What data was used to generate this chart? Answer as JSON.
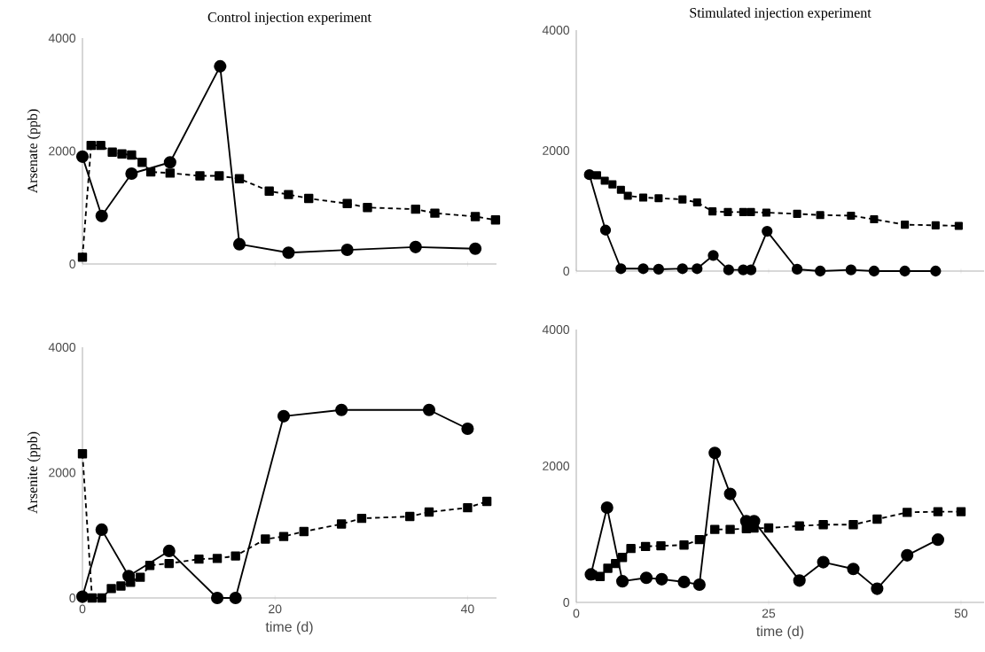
{
  "chart_data": [
    {
      "type": "line",
      "title": "Control injection experiment",
      "ylabel": "Arsenate (ppb)",
      "xlim": [
        0,
        43
      ],
      "xticks": [
        0,
        20,
        40
      ],
      "ylim": [
        0,
        4000
      ],
      "yticks": [
        0,
        2000,
        4000
      ],
      "tick_labels": "y",
      "grid": false,
      "series": [
        {
          "color": "#000000",
          "marker": "circle",
          "line_style": "solid",
          "x": [
            0,
            2,
            5.1,
            9.1,
            14.3,
            16.3,
            21.4,
            27.5,
            34.6,
            40.8
          ],
          "values": [
            1900,
            850,
            1600,
            1800,
            3500,
            350,
            200,
            250,
            300,
            270
          ]
        },
        {
          "color": "#000000",
          "marker": "square",
          "line_style": "dashed",
          "x": [
            0,
            0.9,
            1.9,
            3.1,
            4.1,
            5.1,
            6.2,
            7.1,
            9.1,
            12.2,
            14.2,
            16.3,
            19.4,
            21.4,
            23.5,
            27.5,
            29.6,
            34.6,
            36.6,
            40.8,
            42.9
          ],
          "values": [
            120,
            2100,
            2100,
            1980,
            1950,
            1930,
            1800,
            1630,
            1610,
            1560,
            1560,
            1510,
            1290,
            1230,
            1160,
            1070,
            1000,
            970,
            900,
            840,
            780
          ]
        }
      ]
    },
    {
      "type": "line",
      "title": "Stimulated injection experiment",
      "xlim": [
        0,
        53
      ],
      "xticks": [
        0,
        25,
        50
      ],
      "ylim": [
        0,
        4000
      ],
      "yticks": [
        0,
        2000,
        4000
      ],
      "tick_labels": "y",
      "grid": false,
      "series": [
        {
          "color": "#000000",
          "marker": "circle",
          "line_style": "solid",
          "x": [
            1.7,
            3.8,
            5.8,
            8.7,
            10.7,
            13.8,
            15.7,
            17.8,
            19.8,
            21.7,
            22.7,
            24.8,
            28.7,
            31.7,
            35.7,
            38.7,
            42.7,
            46.7
          ],
          "values": [
            1600,
            680,
            40,
            40,
            30,
            40,
            40,
            260,
            20,
            20,
            20,
            660,
            30,
            0,
            20,
            0,
            0,
            0
          ]
        },
        {
          "color": "#000000",
          "marker": "square",
          "line_style": "dashed",
          "x": [
            2.7,
            3.7,
            4.7,
            5.8,
            6.7,
            8.7,
            10.7,
            13.8,
            15.7,
            17.7,
            19.7,
            21.7,
            22.7,
            24.7,
            28.7,
            31.7,
            35.7,
            38.7,
            42.7,
            46.7,
            49.7
          ],
          "values": [
            1590,
            1500,
            1440,
            1350,
            1250,
            1220,
            1210,
            1190,
            1140,
            990,
            980,
            980,
            980,
            970,
            950,
            930,
            920,
            860,
            770,
            760,
            750
          ]
        }
      ]
    },
    {
      "type": "line",
      "ylabel": "Arsenite (ppb)",
      "xlabel": "time (d)",
      "xlim": [
        0,
        43
      ],
      "xticks": [
        0,
        20,
        40
      ],
      "ylim": [
        0,
        4000
      ],
      "yticks": [
        0,
        2000,
        4000
      ],
      "grid": false,
      "series": [
        {
          "color": "#000000",
          "marker": "circle",
          "line_style": "solid",
          "x": [
            0,
            2,
            4.8,
            9,
            14,
            15.9,
            20.9,
            26.9,
            36,
            40
          ],
          "values": [
            20,
            1090,
            350,
            750,
            0,
            0,
            2900,
            3000,
            3000,
            2700
          ]
        },
        {
          "color": "#000000",
          "marker": "square",
          "line_style": "dashed",
          "x": [
            0,
            1,
            2,
            3,
            4,
            5,
            6,
            7,
            9,
            12.1,
            14,
            15.9,
            19,
            20.9,
            23,
            26.9,
            29,
            34,
            36,
            40,
            42
          ],
          "values": [
            2300,
            0,
            0,
            150,
            190,
            250,
            330,
            520,
            550,
            620,
            630,
            670,
            940,
            980,
            1060,
            1180,
            1270,
            1300,
            1370,
            1440,
            1540
          ]
        }
      ]
    },
    {
      "type": "line",
      "xlabel": "time (d)",
      "xlim": [
        0,
        53
      ],
      "xticks": [
        0,
        25,
        50
      ],
      "ylim": [
        0,
        4000
      ],
      "yticks": [
        0,
        2000,
        4000
      ],
      "grid": false,
      "series": [
        {
          "color": "#000000",
          "marker": "circle",
          "line_style": "solid",
          "x": [
            1.9,
            4,
            6,
            9.1,
            11.1,
            14,
            16,
            18,
            20,
            22.1,
            23.1,
            29,
            32.1,
            36,
            39.1,
            43,
            47
          ],
          "values": [
            410,
            1390,
            310,
            360,
            340,
            300,
            260,
            2190,
            1590,
            1190,
            1190,
            320,
            590,
            490,
            200,
            690,
            920
          ]
        },
        {
          "color": "#000000",
          "marker": "square",
          "line_style": "dashed",
          "x": [
            2.1,
            3.1,
            4.1,
            5.1,
            6,
            7.1,
            9,
            11,
            14,
            16,
            18,
            20,
            22.1,
            23.1,
            25,
            29,
            32.1,
            36,
            39.1,
            43,
            47,
            50
          ],
          "values": [
            400,
            380,
            500,
            570,
            660,
            790,
            820,
            830,
            840,
            920,
            1070,
            1070,
            1080,
            1090,
            1090,
            1120,
            1140,
            1140,
            1220,
            1320,
            1330,
            1330
          ]
        }
      ]
    }
  ]
}
